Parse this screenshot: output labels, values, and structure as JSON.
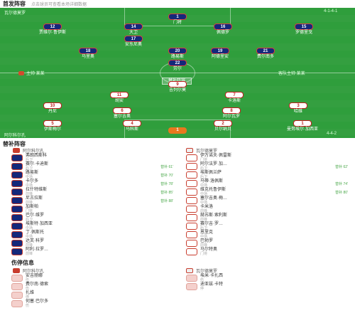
{
  "header": {
    "title": "首发阵容",
    "subtitle": "点击球员可查看本场详细数据"
  },
  "pitch": {
    "home_team": "阿尔科尔孔",
    "home_formation": "4-4-2",
    "away_team": "瓦尔德莫罗",
    "away_formation": "4-1-4-1",
    "score_label": "替补阵容",
    "home_coach_line": "主帅 某某",
    "away_coach_line": "客队主帅 某某",
    "home_players": [
      {
        "num": "1",
        "name": "曼努埃尔·加西亚"
      },
      {
        "num": "2",
        "name": "贝尔纳贝"
      },
      {
        "num": "4",
        "name": "马科斯"
      },
      {
        "num": "5",
        "name": "伊斯梅尔"
      },
      {
        "num": "3",
        "name": "哈维"
      },
      {
        "num": "8",
        "name": "阿尔瓦罗"
      },
      {
        "num": "6",
        "name": "塞尔吉奥"
      },
      {
        "num": "10",
        "name": "丹尼"
      },
      {
        "num": "7",
        "name": "卡洛斯"
      },
      {
        "num": "9",
        "name": "吉列尔莫"
      },
      {
        "num": "11",
        "name": "胡安"
      }
    ],
    "away_players": [
      {
        "num": "12",
        "name": "贾维尔·鲁伊斯"
      },
      {
        "num": "14",
        "name": "大卫"
      },
      {
        "num": "16",
        "name": "佩德罗"
      },
      {
        "num": "15",
        "name": "罗德里戈"
      },
      {
        "num": "17",
        "name": "安东尼奥"
      },
      {
        "num": "18",
        "name": "马里奥"
      },
      {
        "num": "20",
        "name": "路易斯"
      },
      {
        "num": "21",
        "name": "费尔南多"
      },
      {
        "num": "19",
        "name": "阿德里安"
      },
      {
        "num": "22",
        "name": "劳尔"
      },
      {
        "num": "1",
        "name": "门将"
      }
    ]
  },
  "subs": {
    "title": "替补阵容",
    "home_tag": "阿尔科尔孔",
    "away_tag": "瓦尔德莫罗",
    "home": [
      {
        "name": "弗朗西斯科",
        "pos": "后卫",
        "ev": ""
      },
      {
        "name": "赛尔·卡迪斯",
        "pos": "后卫",
        "ev": "替补 61'"
      },
      {
        "name": "路易斯",
        "pos": "中场",
        "ev": "替补 70'"
      },
      {
        "name": "卡尔多",
        "pos": "中场",
        "ev": "替补 78'"
      },
      {
        "name": "拉什特维斯",
        "pos": "前锋",
        "ev": "替补 85'"
      },
      {
        "name": "尼古拉斯",
        "pos": "前锋",
        "ev": "替补 88'"
      },
      {
        "name": "加斯帕",
        "pos": "门将",
        "ev": ""
      },
      {
        "name": "巴尔·维罗",
        "pos": "后卫",
        "ev": ""
      },
      {
        "name": "埃斯特·加西亚",
        "pos": "中场",
        "ev": ""
      },
      {
        "name": "丁·佩斯托",
        "pos": "中场",
        "ev": ""
      },
      {
        "name": "达芙·科罗",
        "pos": "前锋",
        "ev": ""
      },
      {
        "name": "阿利·拉罗…",
        "pos": "前锋",
        "ev": ""
      }
    ],
    "away": [
      {
        "name": "伊万诺夫·佩雷斯",
        "pos": "门将",
        "ev": ""
      },
      {
        "name": "阿尔法罗·加…",
        "pos": "后卫",
        "ev": "替补 62'"
      },
      {
        "name": "埃斯佩兰萨",
        "pos": "后卫",
        "ev": ""
      },
      {
        "name": "马蒂·洛佩斯",
        "pos": "中场",
        "ev": "替补 74'"
      },
      {
        "name": "维克托鲁伊斯",
        "pos": "中场",
        "ev": "替补 80'"
      },
      {
        "name": "塞尔吉奥·梅…",
        "pos": "中场",
        "ev": ""
      },
      {
        "name": "卡米洛",
        "pos": "前锋",
        "ev": ""
      },
      {
        "name": "赫苏斯·索利斯",
        "pos": "前锋",
        "ev": ""
      },
      {
        "name": "赛尔吉·罗…",
        "pos": "后卫",
        "ev": ""
      },
      {
        "name": "恩里克",
        "pos": "中场",
        "ev": ""
      },
      {
        "name": "巴勃罗",
        "pos": "前锋",
        "ev": ""
      },
      {
        "name": "马尔特奥",
        "pos": "门将",
        "ev": ""
      }
    ]
  },
  "injuries": {
    "title": "伤停信息",
    "home_tag": "阿尔科尔孔",
    "away_tag": "瓦尔德莫罗",
    "home": [
      {
        "name": "安吉丽娜",
        "pos": "伤"
      },
      {
        "name": "费尔南·德索",
        "pos": "伤"
      },
      {
        "name": "扎维",
        "pos": "停"
      },
      {
        "name": "何塞·巴尔多",
        "pos": "伤"
      }
    ],
    "away": [
      {
        "name": "埃米·卡扎西",
        "pos": "伤"
      },
      {
        "name": "迪亚兹·卡特",
        "pos": "停"
      }
    ]
  }
}
